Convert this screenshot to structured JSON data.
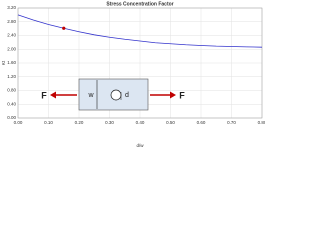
{
  "chart_data": {
    "type": "line",
    "title": "Stress Concentration Factor",
    "x_label": "d/w",
    "y_label": "Kt",
    "x": [
      0,
      0.05,
      0.1,
      0.15,
      0.2,
      0.25,
      0.3,
      0.35,
      0.4,
      0.45,
      0.5,
      0.55,
      0.6,
      0.65,
      0.7,
      0.75,
      0.8
    ],
    "series": [
      {
        "name": "Kt",
        "color": "#3333cc",
        "values": [
          3.0,
          2.85,
          2.72,
          2.61,
          2.51,
          2.42,
          2.35,
          2.29,
          2.24,
          2.19,
          2.16,
          2.13,
          2.11,
          2.09,
          2.08,
          2.07,
          2.06
        ]
      }
    ],
    "highlight": {
      "x": 0.15,
      "y": 2.61,
      "color": "#c00000"
    },
    "xlim": [
      0,
      0.8
    ],
    "xticks": [
      {
        "value": 0,
        "label": "0.00"
      },
      {
        "value": 0.1,
        "label": "0.10"
      },
      {
        "value": 0.2,
        "label": "0.20"
      },
      {
        "value": 0.3,
        "label": "0.30"
      },
      {
        "value": 0.4,
        "label": "0.40"
      },
      {
        "value": 0.5,
        "label": "0.50"
      },
      {
        "value": 0.6,
        "label": "0.60"
      },
      {
        "value": 0.7,
        "label": "0.70"
      },
      {
        "value": 0.8,
        "label": "0.80"
      }
    ],
    "ylim": [
      0,
      3.2
    ],
    "yticks": [
      {
        "value": 0,
        "label": "0.00"
      },
      {
        "value": 0.4,
        "label": "0.40"
      },
      {
        "value": 0.8,
        "label": "0.80"
      },
      {
        "value": 1.2,
        "label": "1.20"
      },
      {
        "value": 1.6,
        "label": "1.60"
      },
      {
        "value": 2,
        "label": "2.00"
      },
      {
        "value": 2.4,
        "label": "2.40"
      },
      {
        "value": 2.8,
        "label": "2.80"
      },
      {
        "value": 3.2,
        "label": "3.20"
      }
    ],
    "grid": true,
    "diagram_labels": {
      "force_left": "F",
      "width": "w",
      "diameter": "d",
      "force_right": "F"
    }
  }
}
